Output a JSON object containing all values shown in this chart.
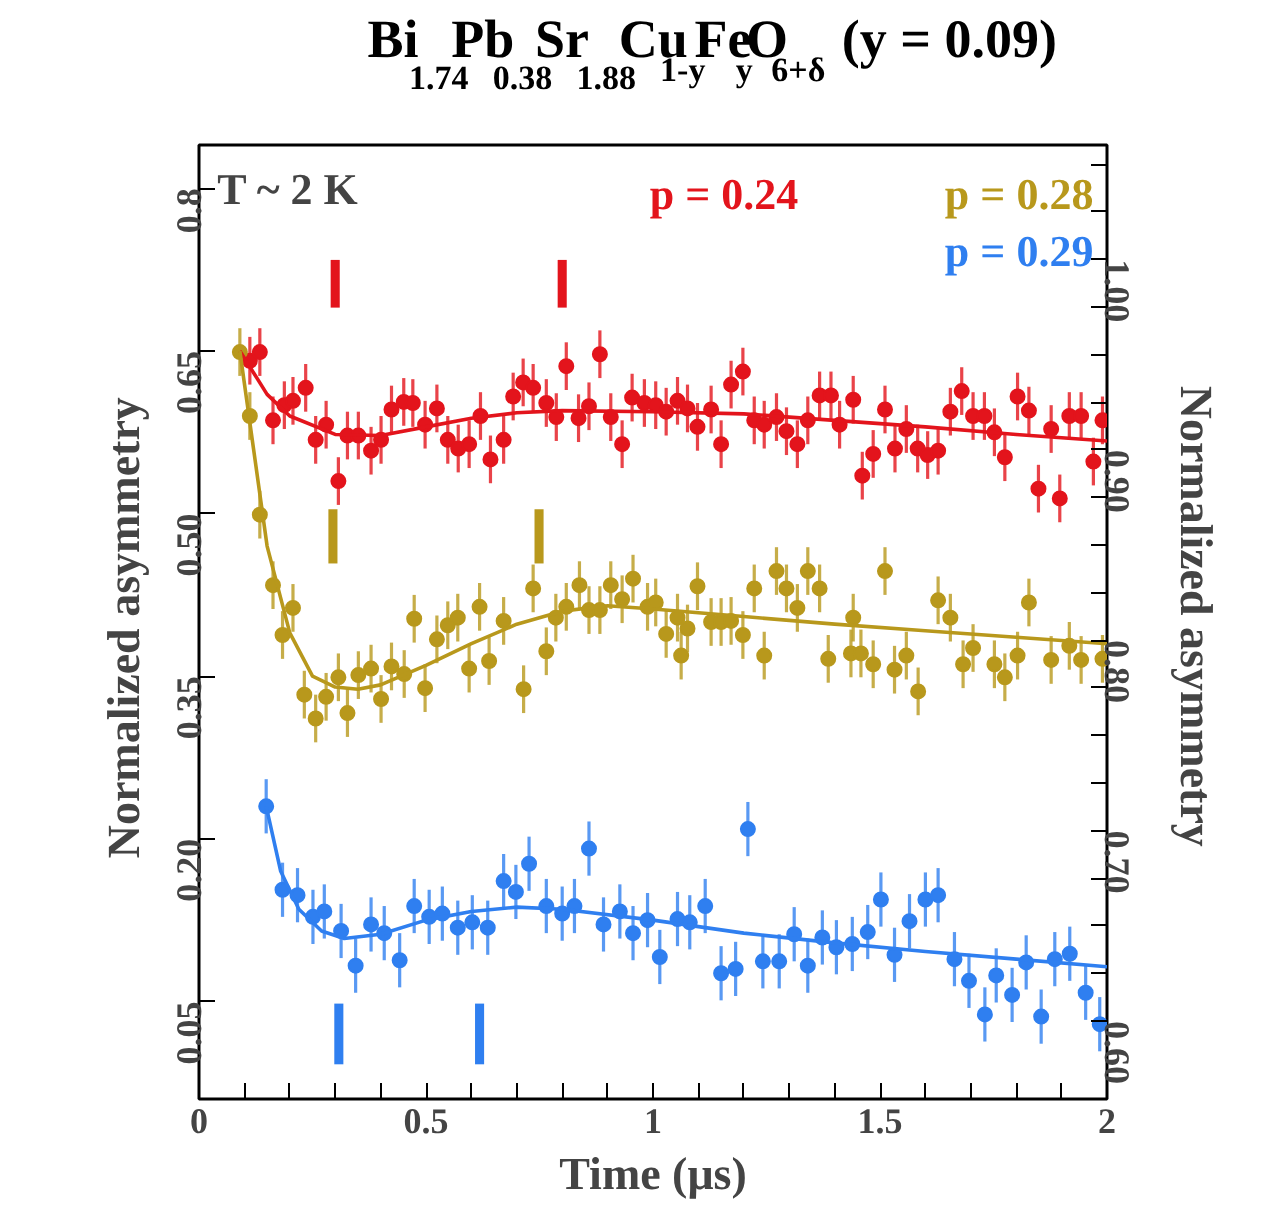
{
  "chart_data": {
    "type": "scatter",
    "title": "Bi$_{1.74}$Pb$_{0.38}$Sr$_{1.88}$Cu$_{1-y}$Fe$_{y}$O$_{6+δ}$   (y = 0.09)",
    "xlabel": "Time (μs)",
    "ylabel": "Normalized  asymmetry",
    "y2label": "Normalized  asymmetry",
    "annotations": [
      "T ~ 2 K"
    ],
    "marker": "circle",
    "xlim": [
      0,
      2
    ],
    "ylim": [
      -0.04,
      0.84
    ],
    "y2lim": [
      0.559,
      1.06
    ],
    "xticks": [
      0,
      {
        "value": 0.1,
        "label": null
      },
      {
        "value": 0.2,
        "label": null
      },
      {
        "value": 0.3,
        "label": null
      },
      {
        "value": 0.4,
        "label": null
      },
      0.5,
      {
        "value": 0.6,
        "label": null
      },
      {
        "value": 0.7,
        "label": null
      },
      {
        "value": 0.8,
        "label": null
      },
      {
        "value": 0.9,
        "label": null
      },
      1,
      {
        "value": 1.1,
        "label": null
      },
      {
        "value": 1.2,
        "label": null
      },
      {
        "value": 1.3,
        "label": null
      },
      {
        "value": 1.4,
        "label": null
      },
      1.5,
      {
        "value": 1.6,
        "label": null
      },
      {
        "value": 1.7,
        "label": null
      },
      {
        "value": 1.8,
        "label": null
      },
      {
        "value": 1.9,
        "label": null
      },
      2
    ],
    "yticks": [
      {
        "value": 0.05,
        "label": "0.05"
      },
      {
        "value": 0.2,
        "label": "0.20"
      },
      {
        "value": 0.35,
        "label": "0.35"
      },
      {
        "value": 0.5,
        "label": "0.50"
      },
      {
        "value": 0.65,
        "label": "0.65"
      },
      0.8
    ],
    "y2ticks": [
      {
        "value": 0.6,
        "label": "0.60"
      },
      {
        "value": 0.625,
        "label": null
      },
      {
        "value": 0.65,
        "label": null
      },
      {
        "value": 0.675,
        "label": null
      },
      {
        "value": 0.7,
        "label": "0.70"
      },
      {
        "value": 0.725,
        "label": null
      },
      {
        "value": 0.75,
        "label": null
      },
      {
        "value": 0.775,
        "label": null
      },
      {
        "value": 0.8,
        "label": "0.80"
      },
      {
        "value": 0.825,
        "label": null
      },
      {
        "value": 0.85,
        "label": null
      },
      {
        "value": 0.875,
        "label": null
      },
      {
        "value": 0.9,
        "label": "0.90"
      },
      {
        "value": 0.925,
        "label": null
      },
      {
        "value": 0.95,
        "label": null
      },
      {
        "value": 0.975,
        "label": null
      },
      {
        "value": 1.0,
        "label": "1.00"
      },
      {
        "value": 1.025,
        "label": null
      },
      {
        "value": 1.05,
        "label": null
      }
    ],
    "series": [
      {
        "name": "p = 0.24",
        "color": "#e3141c",
        "x": [
          0.112,
          0.134,
          0.163,
          0.188,
          0.207,
          0.235,
          0.257,
          0.28,
          0.307,
          0.327,
          0.351,
          0.379,
          0.401,
          0.424,
          0.451,
          0.471,
          0.498,
          0.524,
          0.548,
          0.571,
          0.595,
          0.62,
          0.642,
          0.671,
          0.692,
          0.714,
          0.736,
          0.765,
          0.787,
          0.809,
          0.836,
          0.859,
          0.883,
          0.907,
          0.932,
          0.954,
          0.981,
          1.006,
          1.029,
          1.054,
          1.076,
          1.098,
          1.128,
          1.15,
          1.172,
          1.198,
          1.223,
          1.245,
          1.272,
          1.294,
          1.318,
          1.341,
          1.367,
          1.392,
          1.411,
          1.441,
          1.461,
          1.485,
          1.511,
          1.533,
          1.558,
          1.583,
          1.605,
          1.628,
          1.655,
          1.68,
          1.705,
          1.73,
          1.752,
          1.775,
          1.803,
          1.828,
          1.849,
          1.877,
          1.896,
          1.917,
          1.943,
          1.97,
          1.99
        ],
        "values": [
          0.641,
          0.649,
          0.586,
          0.6,
          0.604,
          0.616,
          0.568,
          0.582,
          0.53,
          0.572,
          0.572,
          0.558,
          0.568,
          0.596,
          0.603,
          0.602,
          0.582,
          0.597,
          0.568,
          0.56,
          0.564,
          0.59,
          0.55,
          0.568,
          0.608,
          0.621,
          0.616,
          0.602,
          0.589,
          0.636,
          0.588,
          0.599,
          0.647,
          0.589,
          0.564,
          0.607,
          0.602,
          0.6,
          0.594,
          0.604,
          0.597,
          0.58,
          0.596,
          0.564,
          0.619,
          0.631,
          0.586,
          0.582,
          0.589,
          0.576,
          0.564,
          0.586,
          0.609,
          0.609,
          0.582,
          0.605,
          0.535,
          0.555,
          0.596,
          0.56,
          0.578,
          0.56,
          0.554,
          0.558,
          0.594,
          0.613,
          0.59,
          0.59,
          0.575,
          0.552,
          0.608,
          0.595,
          0.523,
          0.578,
          0.514,
          0.59,
          0.59,
          0.548,
          0.586
        ],
        "errors": [
          0.022,
          0.022,
          0.022,
          0.022,
          0.022,
          0.022,
          0.022,
          0.022,
          0.022,
          0.022,
          0.022,
          0.022,
          0.022,
          0.022,
          0.022,
          0.022,
          0.022,
          0.022,
          0.022,
          0.022,
          0.022,
          0.022,
          0.022,
          0.022,
          0.022,
          0.022,
          0.022,
          0.022,
          0.022,
          0.022,
          0.022,
          0.022,
          0.022,
          0.022,
          0.022,
          0.022,
          0.022,
          0.022,
          0.022,
          0.022,
          0.022,
          0.022,
          0.022,
          0.022,
          0.022,
          0.022,
          0.022,
          0.022,
          0.022,
          0.022,
          0.022,
          0.022,
          0.022,
          0.022,
          0.022,
          0.022,
          0.022,
          0.022,
          0.022,
          0.022,
          0.022,
          0.022,
          0.022,
          0.022,
          0.022,
          0.022,
          0.022,
          0.022,
          0.022,
          0.022,
          0.022,
          0.022,
          0.022,
          0.022,
          0.022,
          0.022,
          0.022,
          0.022,
          0.022
        ]
      },
      {
        "name": "p = 0.28",
        "color": "#b8981c",
        "x": [
          0.09,
          0.112,
          0.134,
          0.163,
          0.184,
          0.207,
          0.232,
          0.257,
          0.28,
          0.307,
          0.327,
          0.351,
          0.379,
          0.401,
          0.424,
          0.452,
          0.474,
          0.498,
          0.524,
          0.548,
          0.57,
          0.595,
          0.618,
          0.639,
          0.671,
          0.715,
          0.736,
          0.765,
          0.786,
          0.809,
          0.838,
          0.859,
          0.883,
          0.907,
          0.932,
          0.956,
          0.988,
          1.006,
          1.029,
          1.054,
          1.062,
          1.076,
          1.098,
          1.128,
          1.15,
          1.172,
          1.198,
          1.223,
          1.245,
          1.272,
          1.294,
          1.318,
          1.341,
          1.367,
          1.386,
          1.436,
          1.441,
          1.458,
          1.485,
          1.511,
          1.532,
          1.558,
          1.584,
          1.628,
          1.655,
          1.683,
          1.705,
          1.752,
          1.775,
          1.803,
          1.828,
          1.877,
          1.917,
          1.943,
          1.99
        ],
        "values": [
          0.649,
          0.59,
          0.499,
          0.434,
          0.388,
          0.413,
          0.333,
          0.311,
          0.331,
          0.349,
          0.316,
          0.351,
          0.357,
          0.329,
          0.359,
          0.352,
          0.403,
          0.339,
          0.384,
          0.397,
          0.404,
          0.357,
          0.414,
          0.364,
          0.401,
          0.338,
          0.431,
          0.373,
          0.404,
          0.414,
          0.434,
          0.411,
          0.411,
          0.434,
          0.421,
          0.44,
          0.414,
          0.418,
          0.389,
          0.404,
          0.369,
          0.394,
          0.433,
          0.4,
          0.4,
          0.401,
          0.388,
          0.431,
          0.369,
          0.447,
          0.431,
          0.413,
          0.447,
          0.431,
          0.366,
          0.371,
          0.404,
          0.371,
          0.361,
          0.447,
          0.356,
          0.369,
          0.336,
          0.42,
          0.404,
          0.361,
          0.376,
          0.361,
          0.349,
          0.369,
          0.418,
          0.365,
          0.378,
          0.365,
          0.366
        ],
        "errors": [
          0.022,
          0.022,
          0.022,
          0.022,
          0.022,
          0.022,
          0.022,
          0.022,
          0.022,
          0.022,
          0.022,
          0.022,
          0.022,
          0.022,
          0.022,
          0.022,
          0.022,
          0.022,
          0.022,
          0.022,
          0.022,
          0.022,
          0.022,
          0.022,
          0.022,
          0.022,
          0.022,
          0.022,
          0.022,
          0.022,
          0.022,
          0.022,
          0.022,
          0.022,
          0.022,
          0.022,
          0.022,
          0.022,
          0.022,
          0.022,
          0.022,
          0.022,
          0.022,
          0.022,
          0.022,
          0.022,
          0.022,
          0.022,
          0.022,
          0.022,
          0.022,
          0.022,
          0.022,
          0.022,
          0.022,
          0.022,
          0.022,
          0.022,
          0.022,
          0.022,
          0.022,
          0.022,
          0.022,
          0.022,
          0.022,
          0.022,
          0.022,
          0.022,
          0.022,
          0.022,
          0.022,
          0.022,
          0.022,
          0.022,
          0.022
        ]
      },
      {
        "name": "p = 0.29",
        "color": "#2f7ff0",
        "x": [
          0.148,
          0.184,
          0.217,
          0.251,
          0.276,
          0.313,
          0.345,
          0.379,
          0.408,
          0.442,
          0.474,
          0.507,
          0.536,
          0.57,
          0.602,
          0.636,
          0.671,
          0.698,
          0.727,
          0.765,
          0.8,
          0.827,
          0.859,
          0.891,
          0.927,
          0.956,
          0.988,
          1.015,
          1.054,
          1.081,
          1.115,
          1.15,
          1.182,
          1.209,
          1.242,
          1.278,
          1.311,
          1.341,
          1.373,
          1.404,
          1.439,
          1.473,
          1.502,
          1.532,
          1.565,
          1.6,
          1.628,
          1.664,
          1.696,
          1.731,
          1.756,
          1.791,
          1.822,
          1.855,
          1.885,
          1.918,
          1.953,
          1.984
        ],
        "values": [
          0.23,
          0.153,
          0.148,
          0.128,
          0.133,
          0.115,
          0.083,
          0.121,
          0.113,
          0.088,
          0.138,
          0.128,
          0.131,
          0.118,
          0.123,
          0.118,
          0.161,
          0.151,
          0.177,
          0.138,
          0.131,
          0.138,
          0.191,
          0.121,
          0.133,
          0.113,
          0.125,
          0.091,
          0.126,
          0.123,
          0.138,
          0.076,
          0.08,
          0.209,
          0.087,
          0.087,
          0.112,
          0.083,
          0.109,
          0.1,
          0.103,
          0.114,
          0.144,
          0.093,
          0.124,
          0.144,
          0.148,
          0.089,
          0.069,
          0.038,
          0.074,
          0.056,
          0.086,
          0.036,
          0.089,
          0.094,
          0.058,
          0.029
        ],
        "errors": [
          0.025,
          0.025,
          0.025,
          0.025,
          0.025,
          0.025,
          0.025,
          0.025,
          0.025,
          0.025,
          0.025,
          0.025,
          0.025,
          0.025,
          0.025,
          0.025,
          0.025,
          0.025,
          0.025,
          0.025,
          0.025,
          0.025,
          0.025,
          0.025,
          0.025,
          0.025,
          0.025,
          0.025,
          0.025,
          0.025,
          0.025,
          0.025,
          0.025,
          0.025,
          0.025,
          0.025,
          0.025,
          0.025,
          0.025,
          0.025,
          0.025,
          0.025,
          0.025,
          0.025,
          0.025,
          0.025,
          0.025,
          0.025,
          0.025,
          0.025,
          0.025,
          0.025,
          0.025,
          0.025,
          0.025,
          0.025,
          0.025,
          0.025
        ]
      },
      {
        "type": "line",
        "marker": "none",
        "color": "#e3141c",
        "x": [
          0.09,
          0.15,
          0.2,
          0.3,
          0.4,
          0.5,
          0.6,
          0.7,
          0.8,
          1.0,
          1.2,
          1.4,
          1.6,
          1.8,
          2.0
        ],
        "values": [
          0.65,
          0.61,
          0.59,
          0.573,
          0.572,
          0.58,
          0.588,
          0.593,
          0.595,
          0.594,
          0.592,
          0.586,
          0.58,
          0.573,
          0.567
        ]
      },
      {
        "type": "line",
        "marker": "none",
        "color": "#b8981c",
        "x": [
          0.09,
          0.12,
          0.15,
          0.2,
          0.25,
          0.3,
          0.35,
          0.4,
          0.5,
          0.6,
          0.7,
          0.8,
          0.9,
          1.0,
          1.2,
          1.4,
          1.6,
          1.8,
          2.0
        ],
        "values": [
          0.65,
          0.56,
          0.47,
          0.39,
          0.35,
          0.34,
          0.338,
          0.342,
          0.36,
          0.38,
          0.398,
          0.41,
          0.415,
          0.412,
          0.405,
          0.398,
          0.392,
          0.386,
          0.38
        ]
      },
      {
        "type": "line",
        "marker": "none",
        "color": "#2f7ff0",
        "x": [
          0.148,
          0.18,
          0.22,
          0.27,
          0.32,
          0.4,
          0.5,
          0.6,
          0.7,
          0.8,
          1.0,
          1.2,
          1.4,
          1.6,
          1.8,
          2.0
        ],
        "values": [
          0.23,
          0.17,
          0.135,
          0.115,
          0.108,
          0.112,
          0.125,
          0.133,
          0.137,
          0.135,
          0.125,
          0.113,
          0.104,
          0.096,
          0.089,
          0.082
        ]
      },
      {
        "type": "bar",
        "color": "#e3141c",
        "x": [
          0.3,
          0.8
        ],
        "base": [
          0.69,
          0.69
        ],
        "values": [
          0.044,
          0.044
        ]
      },
      {
        "type": "bar",
        "color": "#b8981c",
        "x": [
          0.295,
          0.749
        ],
        "base": [
          0.454,
          0.454
        ],
        "values": [
          0.05,
          0.05
        ]
      },
      {
        "type": "bar",
        "color": "#2f7ff0",
        "x": [
          0.308,
          0.618
        ],
        "base": [
          -0.008,
          -0.008
        ],
        "values": [
          0.056,
          0.056
        ]
      }
    ]
  }
}
